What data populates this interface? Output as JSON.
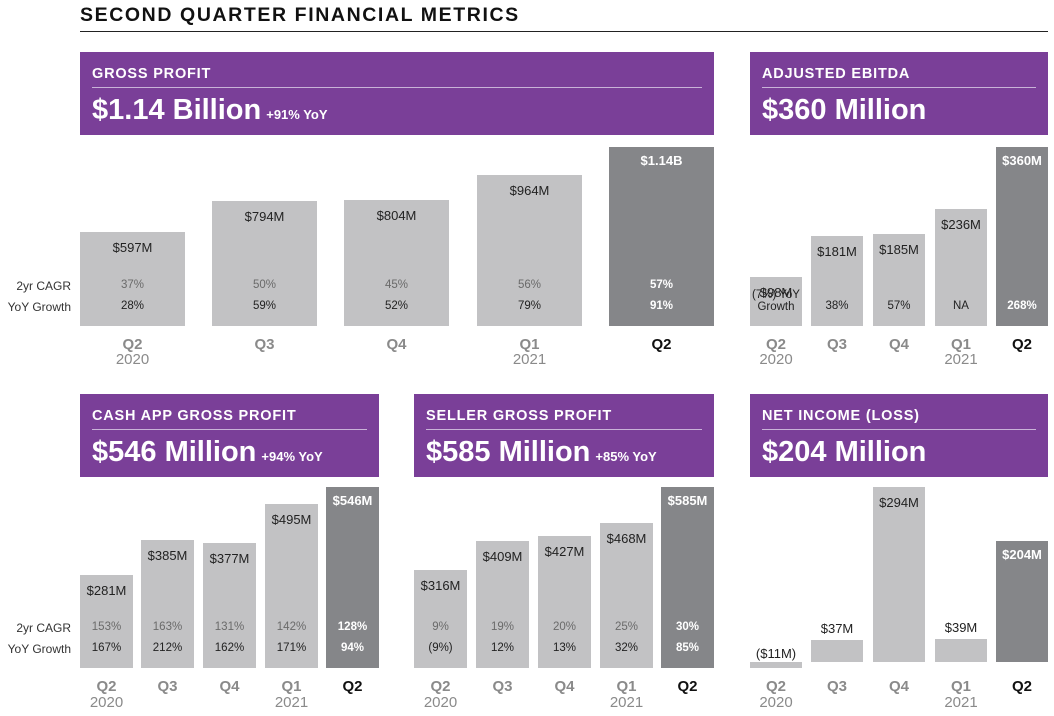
{
  "title": "SECOND QUARTER FINANCIAL METRICS",
  "row_labels": {
    "cagr": "2yr CAGR",
    "yoy": "YoY Growth"
  },
  "colors": {
    "header": "#7a3f98",
    "bar": "#c2c2c4",
    "bar_current": "#858689"
  },
  "chart_data": [
    {
      "id": "gross_profit",
      "type": "bar",
      "title": "GROSS PROFIT",
      "headline": "$1.14 Billion",
      "headline_yoy": "+91% YoY",
      "categories": [
        "Q2",
        "Q3",
        "Q4",
        "Q1",
        "Q2"
      ],
      "years": [
        "2020",
        "",
        "",
        "2021",
        ""
      ],
      "values": [
        597,
        794,
        804,
        964,
        1140
      ],
      "unit": "$M",
      "value_labels": [
        "$597M",
        "$794M",
        "$804M",
        "$964M",
        "$1.14B"
      ],
      "cagr": [
        "37%",
        "50%",
        "45%",
        "56%",
        "57%"
      ],
      "yoy": [
        "28%",
        "59%",
        "52%",
        "79%",
        "91%"
      ],
      "ylim": [
        0,
        1140
      ]
    },
    {
      "id": "adjusted_ebitda",
      "type": "bar",
      "title": "ADJUSTED EBITDA",
      "headline": "$360 Million",
      "headline_yoy": "",
      "categories": [
        "Q2",
        "Q3",
        "Q4",
        "Q1",
        "Q2"
      ],
      "years": [
        "2020",
        "",
        "",
        "2021",
        ""
      ],
      "values": [
        98,
        181,
        185,
        236,
        360
      ],
      "unit": "$M",
      "value_labels": [
        "$98M",
        "$181M",
        "$185M",
        "$236M",
        "$360M"
      ],
      "yoy": [
        "(7%) YoY Growth",
        "38%",
        "57%",
        "NA",
        "268%"
      ],
      "ylim": [
        0,
        360
      ]
    },
    {
      "id": "cash_app_gross_profit",
      "type": "bar",
      "title": "CASH APP GROSS PROFIT",
      "headline": "$546 Million",
      "headline_yoy": "+94% YoY",
      "categories": [
        "Q2",
        "Q3",
        "Q4",
        "Q1",
        "Q2"
      ],
      "years": [
        "2020",
        "",
        "",
        "2021",
        ""
      ],
      "values": [
        281,
        385,
        377,
        495,
        546
      ],
      "unit": "$M",
      "value_labels": [
        "$281M",
        "$385M",
        "$377M",
        "$495M",
        "$546M"
      ],
      "cagr": [
        "153%",
        "163%",
        "131%",
        "142%",
        "128%"
      ],
      "yoy": [
        "167%",
        "212%",
        "162%",
        "171%",
        "94%"
      ],
      "ylim": [
        0,
        546
      ]
    },
    {
      "id": "seller_gross_profit",
      "type": "bar",
      "title": "SELLER GROSS PROFIT",
      "headline": "$585 Million",
      "headline_yoy": "+85% YoY",
      "categories": [
        "Q2",
        "Q3",
        "Q4",
        "Q1",
        "Q2"
      ],
      "years": [
        "2020",
        "",
        "",
        "2021",
        ""
      ],
      "values": [
        316,
        409,
        427,
        468,
        585
      ],
      "unit": "$M",
      "value_labels": [
        "$316M",
        "$409M",
        "$427M",
        "$468M",
        "$585M"
      ],
      "cagr": [
        "9%",
        "19%",
        "20%",
        "25%",
        "30%"
      ],
      "yoy": [
        "(9%)",
        "12%",
        "13%",
        "32%",
        "85%"
      ],
      "ylim": [
        0,
        585
      ]
    },
    {
      "id": "net_income",
      "type": "bar",
      "title": "NET INCOME (LOSS)",
      "headline": "$204 Million",
      "headline_yoy": "",
      "categories": [
        "Q2",
        "Q3",
        "Q4",
        "Q1",
        "Q2"
      ],
      "years": [
        "2020",
        "",
        "",
        "2021",
        ""
      ],
      "values": [
        -11,
        37,
        294,
        39,
        204
      ],
      "unit": "$M",
      "value_labels": [
        "($11M)",
        "$37M",
        "$294M",
        "$39M",
        "$204M"
      ],
      "ylim": [
        -11,
        294
      ]
    }
  ]
}
